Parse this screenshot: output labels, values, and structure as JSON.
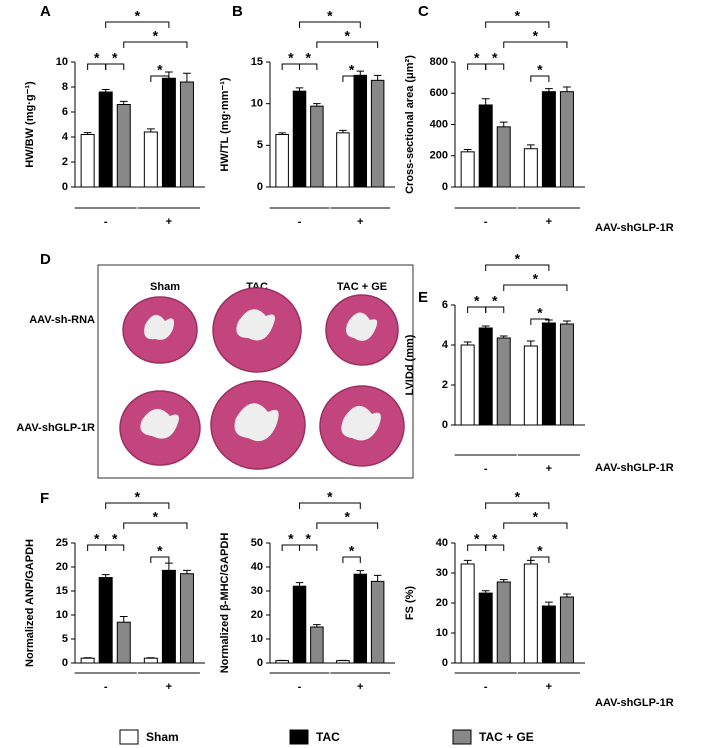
{
  "chart_data": [
    {
      "type": "bar",
      "panel": "A",
      "y_label": "HW/BW (mg·g⁻¹)",
      "categories": [
        "-",
        "+"
      ],
      "ylim": [
        0,
        10
      ],
      "yticks": [
        0,
        2,
        4,
        6,
        8,
        10
      ],
      "series": [
        {
          "color": "#ffffff",
          "values": [
            4.2,
            4.4
          ],
          "errors": [
            0.15,
            0.25
          ]
        },
        {
          "color": "#000000",
          "values": [
            7.6,
            8.7
          ],
          "errors": [
            0.2,
            0.5
          ]
        },
        {
          "color": "#888888",
          "values": [
            6.6,
            8.4
          ],
          "errors": [
            0.25,
            0.7
          ]
        }
      ],
      "annotations": [
        "*",
        "*",
        "*",
        "*",
        "*"
      ]
    },
    {
      "type": "bar",
      "panel": "B",
      "y_label": "HW/TL (mg·mm⁻¹)",
      "categories": [
        "-",
        "+"
      ],
      "ylim": [
        0,
        15
      ],
      "yticks": [
        0,
        5,
        10,
        15
      ],
      "series": [
        {
          "color": "#ffffff",
          "values": [
            6.3,
            6.5
          ],
          "errors": [
            0.2,
            0.3
          ]
        },
        {
          "color": "#000000",
          "values": [
            11.5,
            13.4
          ],
          "errors": [
            0.4,
            0.5
          ]
        },
        {
          "color": "#888888",
          "values": [
            9.7,
            12.8
          ],
          "errors": [
            0.3,
            0.6
          ]
        }
      ],
      "annotations": [
        "*",
        "*",
        "*",
        "*",
        "*"
      ]
    },
    {
      "type": "bar",
      "panel": "C",
      "y_label": "Cross-sectional area (μm²)",
      "group_label": "AAV-shGLP-1R",
      "categories": [
        "-",
        "+"
      ],
      "ylim": [
        0,
        800
      ],
      "yticks": [
        0,
        200,
        400,
        600,
        800
      ],
      "series": [
        {
          "color": "#ffffff",
          "values": [
            225,
            245
          ],
          "errors": [
            15,
            25
          ]
        },
        {
          "color": "#000000",
          "values": [
            525,
            610
          ],
          "errors": [
            40,
            20
          ]
        },
        {
          "color": "#888888",
          "values": [
            385,
            610
          ],
          "errors": [
            30,
            30
          ]
        }
      ],
      "annotations": [
        "*",
        "*",
        "*",
        "*",
        "*"
      ]
    },
    {
      "type": "bar",
      "panel": "E",
      "y_label": "LVIDd (mm)",
      "group_label": "AAV-shGLP-1R",
      "categories": [
        "-",
        "+"
      ],
      "ylim": [
        0,
        6
      ],
      "yticks": [
        0,
        2,
        4,
        6
      ],
      "series": [
        {
          "color": "#ffffff",
          "values": [
            4.0,
            3.95
          ],
          "errors": [
            0.15,
            0.25
          ]
        },
        {
          "color": "#000000",
          "values": [
            4.85,
            5.1
          ],
          "errors": [
            0.1,
            0.15
          ]
        },
        {
          "color": "#888888",
          "values": [
            4.35,
            5.05
          ],
          "errors": [
            0.1,
            0.15
          ]
        }
      ],
      "annotations": [
        "*",
        "*",
        "*",
        "*",
        "*"
      ]
    },
    {
      "type": "bar",
      "panel": "F",
      "y_label": "Normalized ANP/GAPDH",
      "categories": [
        "-",
        "+"
      ],
      "ylim": [
        0,
        25
      ],
      "yticks": [
        0,
        5,
        10,
        15,
        20,
        25
      ],
      "series": [
        {
          "color": "#ffffff",
          "values": [
            1.0,
            1.0
          ],
          "errors": [
            0.1,
            0.1
          ]
        },
        {
          "color": "#000000",
          "values": [
            17.8,
            19.3
          ],
          "errors": [
            0.6,
            1.5
          ]
        },
        {
          "color": "#888888",
          "values": [
            8.5,
            18.6
          ],
          "errors": [
            1.2,
            0.7
          ]
        }
      ],
      "annotations": [
        "*",
        "*",
        "*",
        "*",
        "*"
      ]
    },
    {
      "type": "bar",
      "y_label": "Normalized β-MHC/GAPDH",
      "categories": [
        "-",
        "+"
      ],
      "ylim": [
        0,
        50
      ],
      "yticks": [
        0,
        10,
        20,
        30,
        40,
        50
      ],
      "series": [
        {
          "color": "#ffffff",
          "values": [
            1,
            1
          ],
          "errors": [
            0.1,
            0.1
          ]
        },
        {
          "color": "#000000",
          "values": [
            32,
            37
          ],
          "errors": [
            1.5,
            1.5
          ]
        },
        {
          "color": "#888888",
          "values": [
            15,
            34
          ],
          "errors": [
            1,
            2.5
          ]
        }
      ],
      "annotations": [
        "*",
        "*",
        "*",
        "*",
        "*"
      ]
    },
    {
      "type": "bar",
      "y_label": "FS (%)",
      "group_label": "AAV-shGLP-1R",
      "categories": [
        "-",
        "+"
      ],
      "ylim": [
        0,
        40
      ],
      "yticks": [
        0,
        10,
        20,
        30,
        40
      ],
      "series": [
        {
          "color": "#ffffff",
          "values": [
            33,
            33
          ],
          "errors": [
            1.2,
            1.2
          ]
        },
        {
          "color": "#000000",
          "values": [
            23.3,
            19
          ],
          "errors": [
            0.8,
            1.3
          ]
        },
        {
          "color": "#888888",
          "values": [
            27,
            22
          ],
          "errors": [
            0.8,
            1
          ]
        }
      ],
      "annotations": [
        "*",
        "*",
        "*",
        "*",
        "*"
      ]
    }
  ],
  "image_panel": {
    "panel": "D",
    "columns": [
      "Sham",
      "TAC",
      "TAC + GE"
    ],
    "rows": [
      "AAV-sh-RNA",
      "AAV-shGLP-1R"
    ]
  },
  "legend": [
    "Sham",
    "TAC",
    "TAC + GE"
  ]
}
